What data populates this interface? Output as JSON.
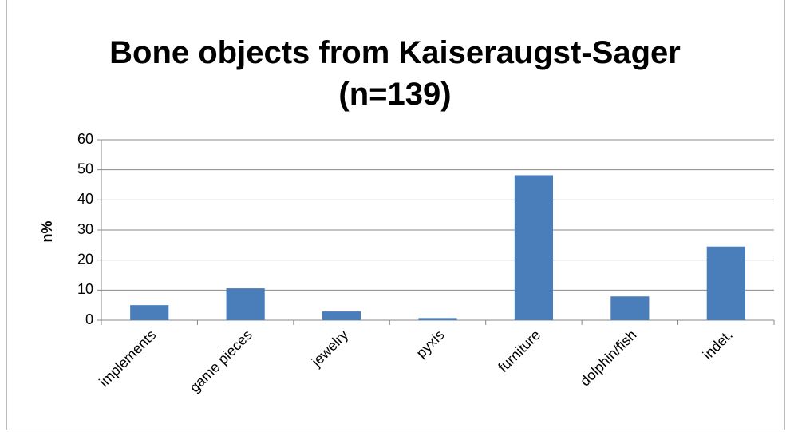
{
  "chart_data": {
    "type": "bar",
    "title": "Bone objects from Kaiseraugst-Sager (n=139)",
    "y_label": "n%",
    "categories": [
      "implements",
      "game pieces",
      "jewelry",
      "pyxis",
      "furniture",
      "dolphin/fish",
      "indet."
    ],
    "values": [
      5,
      10.6,
      2.9,
      0.7,
      48.2,
      7.9,
      24.5
    ],
    "color": "#4a7ebb",
    "ylim": [
      0,
      60
    ],
    "yticks": [
      0,
      10,
      20,
      30,
      40,
      50,
      60
    ],
    "grid": true
  }
}
